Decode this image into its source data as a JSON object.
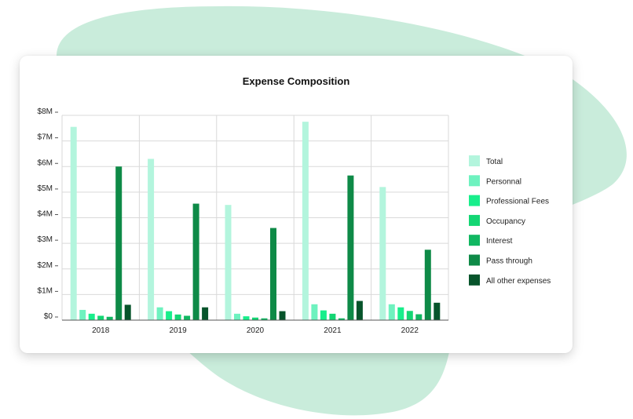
{
  "colors": {
    "background_blob": "#c9ecdb",
    "card": "#ffffff",
    "grid": "#d9d9d9",
    "axis": "#555555"
  },
  "chart_data": {
    "type": "bar",
    "title": "Expense Composition",
    "xlabel": "",
    "ylabel": "",
    "ylim": [
      0,
      8000000
    ],
    "y_ticks": [
      {
        "value": 0,
        "label": "$0"
      },
      {
        "value": 1000000,
        "label": "$1M"
      },
      {
        "value": 2000000,
        "label": "$2M"
      },
      {
        "value": 3000000,
        "label": "$3M"
      },
      {
        "value": 4000000,
        "label": "$4M"
      },
      {
        "value": 5000000,
        "label": "$5M"
      },
      {
        "value": 6000000,
        "label": "$6M"
      },
      {
        "value": 7000000,
        "label": "$7M"
      },
      {
        "value": 8000000,
        "label": "$8M"
      }
    ],
    "categories": [
      "2018",
      "2019",
      "2020",
      "2021",
      "2022"
    ],
    "grid": true,
    "legend_position": "right",
    "series": [
      {
        "name": "Total",
        "color": "#b3f5dd",
        "values": [
          7550000,
          6300000,
          4500000,
          7750000,
          5200000
        ]
      },
      {
        "name": "Personnal",
        "color": "#6ef2bf",
        "values": [
          400000,
          500000,
          250000,
          620000,
          620000
        ]
      },
      {
        "name": "Professional Fees",
        "color": "#18ee8b",
        "values": [
          250000,
          350000,
          150000,
          380000,
          500000
        ]
      },
      {
        "name": "Occupancy",
        "color": "#13d673",
        "values": [
          170000,
          220000,
          100000,
          250000,
          360000
        ]
      },
      {
        "name": "Interest",
        "color": "#10b761",
        "values": [
          130000,
          170000,
          70000,
          70000,
          230000
        ]
      },
      {
        "name": "Pass through",
        "color": "#0e8a47",
        "values": [
          6000000,
          4550000,
          3600000,
          5650000,
          2750000
        ]
      },
      {
        "name": "All other expenses",
        "color": "#07542b",
        "values": [
          600000,
          500000,
          350000,
          750000,
          680000
        ]
      }
    ]
  }
}
